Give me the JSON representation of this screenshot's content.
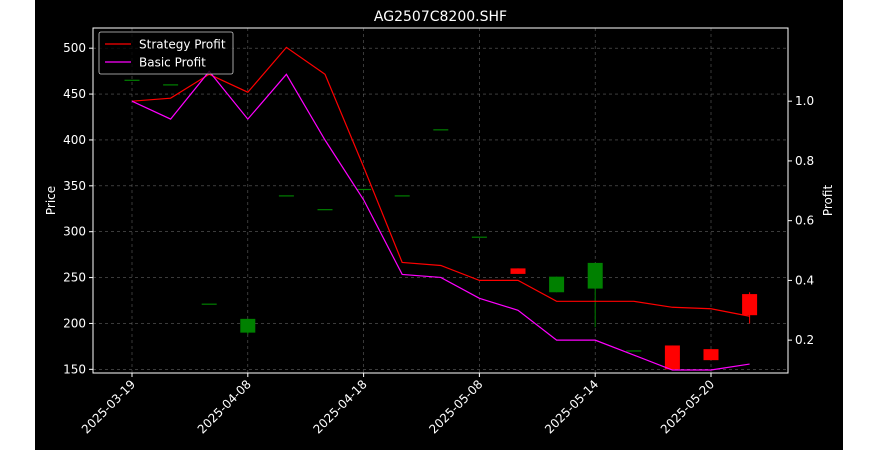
{
  "chart_data": {
    "type": "candlestick+line",
    "title": "AG2507C8200.SHF",
    "xlabel": "",
    "ylabel_left": "Price",
    "ylabel_right": "Profit",
    "ylim_left": [
      146,
      522
    ],
    "ylim_right": [
      0.09,
      1.245
    ],
    "yticks_left": [
      150,
      200,
      250,
      300,
      350,
      400,
      450,
      500
    ],
    "yticks_right": [
      0.2,
      0.4,
      0.6,
      0.8,
      1.0
    ],
    "xtick_labels": [
      {
        "i": 0,
        "label": "2025-03-19"
      },
      {
        "i": 3,
        "label": "2025-04-08"
      },
      {
        "i": 6,
        "label": "2025-04-18"
      },
      {
        "i": 9,
        "label": "2025-05-08"
      },
      {
        "i": 12,
        "label": "2025-05-14"
      },
      {
        "i": 15,
        "label": "2025-05-20"
      }
    ],
    "grid": true,
    "legend_position": "upper-left",
    "colors": {
      "up": "#008000",
      "down": "#ff0000",
      "strategy": "#ff0000",
      "basic": "#ff00ff",
      "background": "#000000",
      "foreground": "#ffffff"
    },
    "candles": [
      {
        "open": 465,
        "high": 465,
        "low": 465,
        "close": 465
      },
      {
        "open": 460,
        "high": 460,
        "low": 460,
        "close": 460
      },
      {
        "open": 221,
        "high": 221,
        "low": 221,
        "close": 221
      },
      {
        "open": 190,
        "high": 205,
        "low": 188,
        "close": 205
      },
      {
        "open": 339,
        "high": 339,
        "low": 339,
        "close": 339
      },
      {
        "open": 324,
        "high": 324,
        "low": 324,
        "close": 324
      },
      {
        "open": 346,
        "high": 346,
        "low": 346,
        "close": 346
      },
      {
        "open": 339,
        "high": 339,
        "low": 339,
        "close": 339
      },
      {
        "open": 411,
        "high": 411,
        "low": 411,
        "close": 411
      },
      {
        "open": 294,
        "high": 294,
        "low": 294,
        "close": 294
      },
      {
        "open": 260,
        "high": 260,
        "low": 254,
        "close": 254
      },
      {
        "open": 234,
        "high": 251,
        "low": 234,
        "close": 251
      },
      {
        "open": 238,
        "high": 266,
        "low": 196,
        "close": 266
      },
      {
        "open": 170,
        "high": 170,
        "low": 170,
        "close": 170
      },
      {
        "open": 176,
        "high": 176,
        "low": 150,
        "close": 150
      },
      {
        "open": 172,
        "high": 172,
        "low": 160,
        "close": 160
      },
      {
        "open": 232,
        "high": 234,
        "low": 200,
        "close": 209
      }
    ],
    "series": [
      {
        "name": "Strategy Profit",
        "values": [
          1.0,
          1.01,
          1.09,
          1.03,
          1.18,
          1.09,
          0.78,
          0.46,
          0.45,
          0.4,
          0.4,
          0.33,
          0.33,
          0.33,
          0.31,
          0.305,
          0.28
        ]
      },
      {
        "name": "Basic Profit",
        "values": [
          1.0,
          0.94,
          1.1,
          0.94,
          1.09,
          0.87,
          0.67,
          0.42,
          0.41,
          0.34,
          0.3,
          0.2,
          0.2,
          0.15,
          0.1,
          0.1,
          0.12
        ]
      }
    ]
  }
}
